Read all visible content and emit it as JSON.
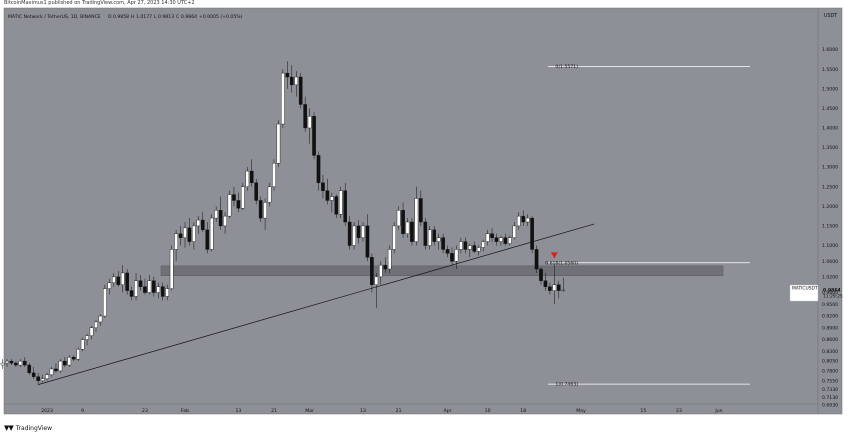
{
  "header": {
    "credit": "BitcoinMaximus1 published on TradingView.com, Apr 27, 2023 14:30 UTC+2",
    "symbol_line": "MATIC Network / TetherUS, 1D, BINANCE",
    "ohlc": {
      "o_label": "O",
      "o": "0.9858",
      "h_label": "H",
      "h": "1.0177",
      "l_label": "L",
      "l": "0.9813",
      "c_label": "C",
      "c": "0.9864",
      "change": "+0.0005 (+0.05%)"
    }
  },
  "footer": {
    "brand": "TradingView"
  },
  "chart_data": {
    "type": "candlestick",
    "y_unit": "USDT",
    "ylim": [
      0.693,
      1.65
    ],
    "yticks": [
      "1.6000",
      "1.5500",
      "1.5000",
      "1.4500",
      "1.4000",
      "1.3500",
      "1.3000",
      "1.2500",
      "1.2000",
      "1.1500",
      "1.1000",
      "1.0600",
      "1.0200",
      "0.9800",
      "0.9500",
      "0.9200",
      "0.8900",
      "0.8600",
      "0.8300",
      "0.8050",
      "0.7800",
      "0.7550",
      "0.7330",
      "0.7130",
      "0.6930"
    ],
    "xticks": [
      "12",
      "20",
      "2023",
      "9",
      "23",
      "Feb",
      "13",
      "21",
      "Mar",
      "13",
      "21",
      "Apr",
      "10",
      "18",
      "May",
      "15",
      "23",
      "Jun"
    ],
    "price_tag": {
      "symbol": "MATICUSDT",
      "price": "0.9864",
      "countdown": "11:29:25",
      "value": 0.9864
    },
    "fib_levels": [
      {
        "label": "0(1.5571)",
        "value": 1.5571
      },
      {
        "label": "0.618(1.0560)",
        "value": 1.056
      },
      {
        "label": "1(0.7463)",
        "value": 0.7463
      }
    ],
    "support_zone": {
      "low": 1.023,
      "high": 1.048
    },
    "trendline": {
      "from": [
        "Dec 30",
        0.745
      ],
      "to": [
        "May 4",
        1.155
      ]
    },
    "marker": {
      "type": "bearish-triangle",
      "date": "Apr 25",
      "price": 1.075,
      "color": "#e01e1e"
    },
    "candles": [
      {
        "date": "Dec 9",
        "o": 0.905,
        "h": 0.92,
        "l": 0.895,
        "c": 0.915
      },
      {
        "date": "Dec 10",
        "o": 0.915,
        "h": 0.925,
        "l": 0.905,
        "c": 0.91
      },
      {
        "date": "Dec 11",
        "o": 0.91,
        "h": 0.92,
        "l": 0.9,
        "c": 0.905
      },
      {
        "date": "Dec 12",
        "o": 0.905,
        "h": 0.93,
        "l": 0.895,
        "c": 0.92
      },
      {
        "date": "Dec 13",
        "o": 0.92,
        "h": 0.935,
        "l": 0.9,
        "c": 0.905
      },
      {
        "date": "Dec 14",
        "o": 0.905,
        "h": 0.915,
        "l": 0.87,
        "c": 0.875
      },
      {
        "date": "Dec 15",
        "o": 0.875,
        "h": 0.88,
        "l": 0.82,
        "c": 0.825
      },
      {
        "date": "Dec 16",
        "o": 0.825,
        "h": 0.835,
        "l": 0.79,
        "c": 0.8
      },
      {
        "date": "Dec 17",
        "o": 0.8,
        "h": 0.82,
        "l": 0.79,
        "c": 0.81
      },
      {
        "date": "Dec 18",
        "o": 0.81,
        "h": 0.815,
        "l": 0.775,
        "c": 0.78
      },
      {
        "date": "Dec 19",
        "o": 0.78,
        "h": 0.8,
        "l": 0.765,
        "c": 0.795
      },
      {
        "date": "Dec 20",
        "o": 0.795,
        "h": 0.82,
        "l": 0.785,
        "c": 0.815
      },
      {
        "date": "Dec 21",
        "o": 0.815,
        "h": 0.825,
        "l": 0.79,
        "c": 0.795
      },
      {
        "date": "Dec 22",
        "o": 0.795,
        "h": 0.81,
        "l": 0.785,
        "c": 0.8
      },
      {
        "date": "Dec 23",
        "o": 0.8,
        "h": 0.81,
        "l": 0.79,
        "c": 0.805
      },
      {
        "date": "Dec 24",
        "o": 0.805,
        "h": 0.81,
        "l": 0.795,
        "c": 0.8
      },
      {
        "date": "Dec 25",
        "o": 0.8,
        "h": 0.805,
        "l": 0.79,
        "c": 0.795
      },
      {
        "date": "Dec 26",
        "o": 0.795,
        "h": 0.81,
        "l": 0.79,
        "c": 0.805
      },
      {
        "date": "Dec 27",
        "o": 0.805,
        "h": 0.815,
        "l": 0.79,
        "c": 0.795
      },
      {
        "date": "Dec 28",
        "o": 0.795,
        "h": 0.8,
        "l": 0.77,
        "c": 0.775
      },
      {
        "date": "Dec 29",
        "o": 0.775,
        "h": 0.79,
        "l": 0.76,
        "c": 0.765
      },
      {
        "date": "Dec 30",
        "o": 0.765,
        "h": 0.775,
        "l": 0.745,
        "c": 0.755
      },
      {
        "date": "Dec 31",
        "o": 0.755,
        "h": 0.77,
        "l": 0.75,
        "c": 0.76
      },
      {
        "date": "Jan 1",
        "o": 0.76,
        "h": 0.775,
        "l": 0.755,
        "c": 0.77
      },
      {
        "date": "Jan 2",
        "o": 0.77,
        "h": 0.79,
        "l": 0.765,
        "c": 0.785
      },
      {
        "date": "Jan 3",
        "o": 0.785,
        "h": 0.8,
        "l": 0.775,
        "c": 0.78
      },
      {
        "date": "Jan 4",
        "o": 0.78,
        "h": 0.81,
        "l": 0.775,
        "c": 0.805
      },
      {
        "date": "Jan 5",
        "o": 0.805,
        "h": 0.815,
        "l": 0.79,
        "c": 0.795
      },
      {
        "date": "Jan 6",
        "o": 0.795,
        "h": 0.82,
        "l": 0.79,
        "c": 0.815
      },
      {
        "date": "Jan 7",
        "o": 0.815,
        "h": 0.82,
        "l": 0.805,
        "c": 0.81
      },
      {
        "date": "Jan 8",
        "o": 0.81,
        "h": 0.84,
        "l": 0.805,
        "c": 0.835
      },
      {
        "date": "Jan 9",
        "o": 0.835,
        "h": 0.865,
        "l": 0.83,
        "c": 0.86
      },
      {
        "date": "Jan 10",
        "o": 0.86,
        "h": 0.875,
        "l": 0.845,
        "c": 0.87
      },
      {
        "date": "Jan 11",
        "o": 0.87,
        "h": 0.895,
        "l": 0.86,
        "c": 0.89
      },
      {
        "date": "Jan 12",
        "o": 0.89,
        "h": 0.91,
        "l": 0.88,
        "c": 0.905
      },
      {
        "date": "Jan 13",
        "o": 0.905,
        "h": 0.925,
        "l": 0.895,
        "c": 0.92
      },
      {
        "date": "Jan 14",
        "o": 0.92,
        "h": 1.0,
        "l": 0.915,
        "c": 0.99
      },
      {
        "date": "Jan 15",
        "o": 0.99,
        "h": 1.015,
        "l": 0.975,
        "c": 1.005
      },
      {
        "date": "Jan 16",
        "o": 1.005,
        "h": 1.03,
        "l": 0.995,
        "c": 1.02
      },
      {
        "date": "Jan 17",
        "o": 1.02,
        "h": 1.035,
        "l": 0.995,
        "c": 1.0
      },
      {
        "date": "Jan 18",
        "o": 1.0,
        "h": 1.05,
        "l": 0.98,
        "c": 1.03
      },
      {
        "date": "Jan 19",
        "o": 1.03,
        "h": 1.04,
        "l": 0.975,
        "c": 0.985
      },
      {
        "date": "Jan 20",
        "o": 0.985,
        "h": 0.995,
        "l": 0.96,
        "c": 0.97
      },
      {
        "date": "Jan 21",
        "o": 0.97,
        "h": 1.03,
        "l": 0.96,
        "c": 1.01
      },
      {
        "date": "Jan 22",
        "o": 1.01,
        "h": 1.025,
        "l": 0.985,
        "c": 0.995
      },
      {
        "date": "Jan 23",
        "o": 0.995,
        "h": 1.015,
        "l": 0.975,
        "c": 0.98
      },
      {
        "date": "Jan 24",
        "o": 0.98,
        "h": 1.025,
        "l": 0.975,
        "c": 1.01
      },
      {
        "date": "Jan 25",
        "o": 1.01,
        "h": 1.02,
        "l": 0.97,
        "c": 0.98
      },
      {
        "date": "Jan 26",
        "o": 0.98,
        "h": 1.005,
        "l": 0.965,
        "c": 0.995
      },
      {
        "date": "Jan 27",
        "o": 0.995,
        "h": 1.005,
        "l": 0.96,
        "c": 0.97
      },
      {
        "date": "Jan 28",
        "o": 0.97,
        "h": 1.0,
        "l": 0.96,
        "c": 0.99
      },
      {
        "date": "Jan 29",
        "o": 0.99,
        "h": 1.1,
        "l": 0.985,
        "c": 1.09
      },
      {
        "date": "Jan 30",
        "o": 1.09,
        "h": 1.14,
        "l": 1.06,
        "c": 1.13
      },
      {
        "date": "Jan 31",
        "o": 1.13,
        "h": 1.15,
        "l": 1.1,
        "c": 1.12
      },
      {
        "date": "Feb 1",
        "o": 1.12,
        "h": 1.16,
        "l": 1.095,
        "c": 1.145
      },
      {
        "date": "Feb 2",
        "o": 1.145,
        "h": 1.17,
        "l": 1.1,
        "c": 1.11
      },
      {
        "date": "Feb 3",
        "o": 1.11,
        "h": 1.16,
        "l": 1.09,
        "c": 1.15
      },
      {
        "date": "Feb 4",
        "o": 1.15,
        "h": 1.175,
        "l": 1.13,
        "c": 1.165
      },
      {
        "date": "Feb 5",
        "o": 1.165,
        "h": 1.185,
        "l": 1.135,
        "c": 1.14
      },
      {
        "date": "Feb 6",
        "o": 1.14,
        "h": 1.16,
        "l": 1.08,
        "c": 1.09
      },
      {
        "date": "Feb 7",
        "o": 1.09,
        "h": 1.18,
        "l": 1.085,
        "c": 1.17
      },
      {
        "date": "Feb 8",
        "o": 1.17,
        "h": 1.2,
        "l": 1.16,
        "c": 1.19
      },
      {
        "date": "Feb 9",
        "o": 1.19,
        "h": 1.225,
        "l": 1.14,
        "c": 1.15
      },
      {
        "date": "Feb 10",
        "o": 1.15,
        "h": 1.185,
        "l": 1.13,
        "c": 1.175
      },
      {
        "date": "Feb 11",
        "o": 1.175,
        "h": 1.24,
        "l": 1.17,
        "c": 1.23
      },
      {
        "date": "Feb 12",
        "o": 1.23,
        "h": 1.25,
        "l": 1.2,
        "c": 1.215
      },
      {
        "date": "Feb 13",
        "o": 1.215,
        "h": 1.235,
        "l": 1.185,
        "c": 1.195
      },
      {
        "date": "Feb 14",
        "o": 1.195,
        "h": 1.26,
        "l": 1.19,
        "c": 1.25
      },
      {
        "date": "Feb 15",
        "o": 1.25,
        "h": 1.3,
        "l": 1.24,
        "c": 1.29
      },
      {
        "date": "Feb 16",
        "o": 1.29,
        "h": 1.32,
        "l": 1.25,
        "c": 1.26
      },
      {
        "date": "Feb 17",
        "o": 1.26,
        "h": 1.27,
        "l": 1.205,
        "c": 1.215
      },
      {
        "date": "Feb 18",
        "o": 1.215,
        "h": 1.225,
        "l": 1.16,
        "c": 1.17
      },
      {
        "date": "Feb 19",
        "o": 1.17,
        "h": 1.22,
        "l": 1.14,
        "c": 1.21
      },
      {
        "date": "Feb 20",
        "o": 1.21,
        "h": 1.26,
        "l": 1.2,
        "c": 1.25
      },
      {
        "date": "Feb 21",
        "o": 1.25,
        "h": 1.32,
        "l": 1.24,
        "c": 1.31
      },
      {
        "date": "Feb 22",
        "o": 1.31,
        "h": 1.42,
        "l": 1.3,
        "c": 1.41
      },
      {
        "date": "Feb 23",
        "o": 1.41,
        "h": 1.55,
        "l": 1.4,
        "c": 1.54
      },
      {
        "date": "Feb 24",
        "o": 1.54,
        "h": 1.57,
        "l": 1.5,
        "c": 1.53
      },
      {
        "date": "Feb 25",
        "o": 1.53,
        "h": 1.56,
        "l": 1.49,
        "c": 1.51
      },
      {
        "date": "Feb 26",
        "o": 1.51,
        "h": 1.545,
        "l": 1.48,
        "c": 1.53
      },
      {
        "date": "Feb 27",
        "o": 1.53,
        "h": 1.54,
        "l": 1.45,
        "c": 1.46
      },
      {
        "date": "Feb 28",
        "o": 1.46,
        "h": 1.48,
        "l": 1.39,
        "c": 1.4
      },
      {
        "date": "Mar 1",
        "o": 1.4,
        "h": 1.45,
        "l": 1.36,
        "c": 1.43
      },
      {
        "date": "Mar 2",
        "o": 1.43,
        "h": 1.44,
        "l": 1.32,
        "c": 1.33
      },
      {
        "date": "Mar 3",
        "o": 1.33,
        "h": 1.34,
        "l": 1.24,
        "c": 1.26
      },
      {
        "date": "Mar 4",
        "o": 1.26,
        "h": 1.28,
        "l": 1.22,
        "c": 1.24
      },
      {
        "date": "Mar 5",
        "o": 1.24,
        "h": 1.27,
        "l": 1.205,
        "c": 1.215
      },
      {
        "date": "Mar 6",
        "o": 1.215,
        "h": 1.235,
        "l": 1.185,
        "c": 1.225
      },
      {
        "date": "Mar 7",
        "o": 1.225,
        "h": 1.23,
        "l": 1.17,
        "c": 1.18
      },
      {
        "date": "Mar 8",
        "o": 1.18,
        "h": 1.25,
        "l": 1.17,
        "c": 1.24
      },
      {
        "date": "Mar 9",
        "o": 1.24,
        "h": 1.26,
        "l": 1.15,
        "c": 1.16
      },
      {
        "date": "Mar 10",
        "o": 1.16,
        "h": 1.175,
        "l": 1.09,
        "c": 1.1
      },
      {
        "date": "Mar 11",
        "o": 1.1,
        "h": 1.16,
        "l": 1.09,
        "c": 1.15
      },
      {
        "date": "Mar 12",
        "o": 1.15,
        "h": 1.165,
        "l": 1.105,
        "c": 1.12
      },
      {
        "date": "Mar 13",
        "o": 1.12,
        "h": 1.16,
        "l": 1.11,
        "c": 1.15
      },
      {
        "date": "Mar 14",
        "o": 1.15,
        "h": 1.18,
        "l": 1.06,
        "c": 1.07
      },
      {
        "date": "Mar 15",
        "o": 1.07,
        "h": 1.08,
        "l": 0.98,
        "c": 1.0
      },
      {
        "date": "Mar 16",
        "o": 1.0,
        "h": 1.03,
        "l": 0.94,
        "c": 1.02
      },
      {
        "date": "Mar 17",
        "o": 1.02,
        "h": 1.06,
        "l": 1.0,
        "c": 1.05
      },
      {
        "date": "Mar 18",
        "o": 1.05,
        "h": 1.07,
        "l": 1.03,
        "c": 1.04
      },
      {
        "date": "Mar 19",
        "o": 1.04,
        "h": 1.1,
        "l": 1.03,
        "c": 1.09
      },
      {
        "date": "Mar 20",
        "o": 1.09,
        "h": 1.16,
        "l": 1.08,
        "c": 1.15
      },
      {
        "date": "Mar 21",
        "o": 1.15,
        "h": 1.2,
        "l": 1.14,
        "c": 1.19
      },
      {
        "date": "Mar 22",
        "o": 1.19,
        "h": 1.21,
        "l": 1.12,
        "c": 1.13
      },
      {
        "date": "Mar 23",
        "o": 1.13,
        "h": 1.17,
        "l": 1.12,
        "c": 1.16
      },
      {
        "date": "Mar 24",
        "o": 1.16,
        "h": 1.17,
        "l": 1.1,
        "c": 1.11
      },
      {
        "date": "Mar 25",
        "o": 1.11,
        "h": 1.25,
        "l": 1.1,
        "c": 1.22
      },
      {
        "date": "Mar 26",
        "o": 1.22,
        "h": 1.24,
        "l": 1.15,
        "c": 1.16
      },
      {
        "date": "Mar 27",
        "o": 1.16,
        "h": 1.17,
        "l": 1.09,
        "c": 1.1
      },
      {
        "date": "Mar 28",
        "o": 1.1,
        "h": 1.15,
        "l": 1.09,
        "c": 1.14
      },
      {
        "date": "Mar 29",
        "o": 1.14,
        "h": 1.15,
        "l": 1.1,
        "c": 1.11
      },
      {
        "date": "Mar 30",
        "o": 1.11,
        "h": 1.13,
        "l": 1.09,
        "c": 1.12
      },
      {
        "date": "Mar 31",
        "o": 1.12,
        "h": 1.13,
        "l": 1.08,
        "c": 1.09
      },
      {
        "date": "Apr 1",
        "o": 1.09,
        "h": 1.1,
        "l": 1.07,
        "c": 1.08
      },
      {
        "date": "Apr 2",
        "o": 1.08,
        "h": 1.095,
        "l": 1.05,
        "c": 1.06
      },
      {
        "date": "Apr 3",
        "o": 1.06,
        "h": 1.1,
        "l": 1.04,
        "c": 1.09
      },
      {
        "date": "Apr 4",
        "o": 1.09,
        "h": 1.12,
        "l": 1.08,
        "c": 1.11
      },
      {
        "date": "Apr 5",
        "o": 1.11,
        "h": 1.12,
        "l": 1.08,
        "c": 1.09
      },
      {
        "date": "Apr 6",
        "o": 1.09,
        "h": 1.105,
        "l": 1.07,
        "c": 1.1
      },
      {
        "date": "Apr 7",
        "o": 1.1,
        "h": 1.11,
        "l": 1.08,
        "c": 1.085
      },
      {
        "date": "Apr 8",
        "o": 1.085,
        "h": 1.1,
        "l": 1.075,
        "c": 1.095
      },
      {
        "date": "Apr 9",
        "o": 1.095,
        "h": 1.115,
        "l": 1.085,
        "c": 1.11
      },
      {
        "date": "Apr 10",
        "o": 1.11,
        "h": 1.14,
        "l": 1.1,
        "c": 1.13
      },
      {
        "date": "Apr 11",
        "o": 1.13,
        "h": 1.145,
        "l": 1.11,
        "c": 1.12
      },
      {
        "date": "Apr 12",
        "o": 1.12,
        "h": 1.13,
        "l": 1.1,
        "c": 1.11
      },
      {
        "date": "Apr 13",
        "o": 1.11,
        "h": 1.125,
        "l": 1.1,
        "c": 1.12
      },
      {
        "date": "Apr 14",
        "o": 1.12,
        "h": 1.13,
        "l": 1.1,
        "c": 1.105
      },
      {
        "date": "Apr 15",
        "o": 1.105,
        "h": 1.125,
        "l": 1.1,
        "c": 1.12
      },
      {
        "date": "Apr 16",
        "o": 1.12,
        "h": 1.16,
        "l": 1.115,
        "c": 1.15
      },
      {
        "date": "Apr 17",
        "o": 1.15,
        "h": 1.185,
        "l": 1.14,
        "c": 1.175
      },
      {
        "date": "Apr 18",
        "o": 1.175,
        "h": 1.19,
        "l": 1.15,
        "c": 1.16
      },
      {
        "date": "Apr 19",
        "o": 1.16,
        "h": 1.18,
        "l": 1.15,
        "c": 1.17
      },
      {
        "date": "Apr 20",
        "o": 1.17,
        "h": 1.175,
        "l": 1.08,
        "c": 1.09
      },
      {
        "date": "Apr 21",
        "o": 1.09,
        "h": 1.1,
        "l": 1.03,
        "c": 1.04
      },
      {
        "date": "Apr 22",
        "o": 1.04,
        "h": 1.045,
        "l": 1.0,
        "c": 1.01
      },
      {
        "date": "Apr 23",
        "o": 1.01,
        "h": 1.03,
        "l": 0.985,
        "c": 0.995
      },
      {
        "date": "Apr 24",
        "o": 0.995,
        "h": 1.005,
        "l": 0.975,
        "c": 0.985
      },
      {
        "date": "Apr 25",
        "o": 0.985,
        "h": 1.05,
        "l": 0.95,
        "c": 1.0
      },
      {
        "date": "Apr 26",
        "o": 1.0,
        "h": 1.01,
        "l": 0.965,
        "c": 0.985
      },
      {
        "date": "Apr 27",
        "o": 0.9858,
        "h": 1.0177,
        "l": 0.9813,
        "c": 0.9864
      }
    ]
  }
}
